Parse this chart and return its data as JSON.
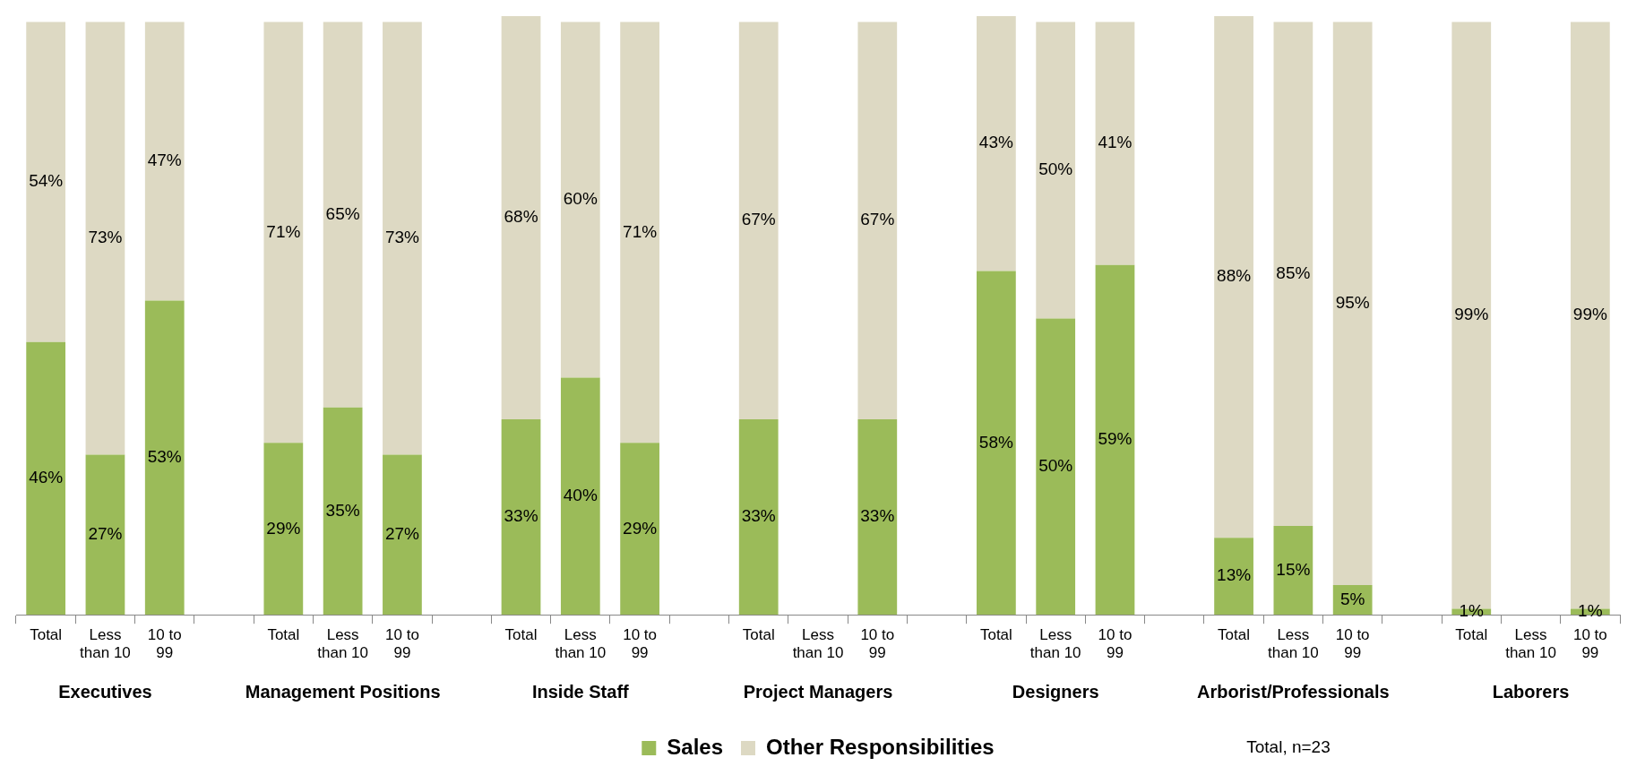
{
  "chart_data": {
    "type": "bar",
    "stacked": true,
    "legend": "bottom",
    "categories": [
      "Total",
      "Less than 10",
      "10 to 99",
      null,
      "Total",
      "Less than 10",
      "10 to 99",
      null,
      "Total",
      "Less than 10",
      "10 to 99",
      null,
      "Total",
      "Less than 10",
      "10 to 99",
      null,
      "Total",
      "Less than 10",
      "10 to 99",
      null,
      "Total",
      "Less than 10",
      "10 to 99",
      null,
      "Total",
      "Less than 10",
      "10 to 99"
    ],
    "series": [
      {
        "name": "Sales",
        "color": "#9bbb59",
        "values": [
          46,
          27,
          53,
          null,
          29,
          35,
          27,
          null,
          33,
          40,
          29,
          null,
          33,
          null,
          33,
          null,
          58,
          50,
          59,
          null,
          13,
          15,
          5,
          null,
          1,
          null,
          1
        ],
        "value_labels": [
          "46%",
          "27%",
          "53%",
          null,
          "29%",
          "35%",
          "27%",
          null,
          "33%",
          "40%",
          "29%",
          null,
          "33%",
          null,
          "33%",
          null,
          "58%",
          "50%",
          "59%",
          null,
          "13%",
          "15%",
          "5%",
          null,
          "1%",
          null,
          "1%"
        ]
      },
      {
        "name": "Other Responsibilities",
        "color": "#ddd9c3",
        "values": [
          54,
          73,
          47,
          null,
          71,
          65,
          73,
          null,
          68,
          60,
          71,
          null,
          67,
          null,
          67,
          null,
          43,
          50,
          41,
          null,
          88,
          85,
          95,
          null,
          99,
          null,
          99
        ],
        "value_labels": [
          "54%",
          "73%",
          "47%",
          null,
          "71%",
          "65%",
          "73%",
          null,
          "68%",
          "60%",
          "71%",
          null,
          "67%",
          null,
          "67%",
          null,
          "43%",
          "50%",
          "41%",
          null,
          "88%",
          "85%",
          "95%",
          null,
          "99%",
          null,
          "99%"
        ]
      }
    ],
    "annotations": [
      "Executives",
      "Management Positions",
      "Inside Staff",
      "Project Managers",
      "Designers",
      "Arborist/Professionals",
      "Laborers",
      "Total, n=23"
    ]
  }
}
